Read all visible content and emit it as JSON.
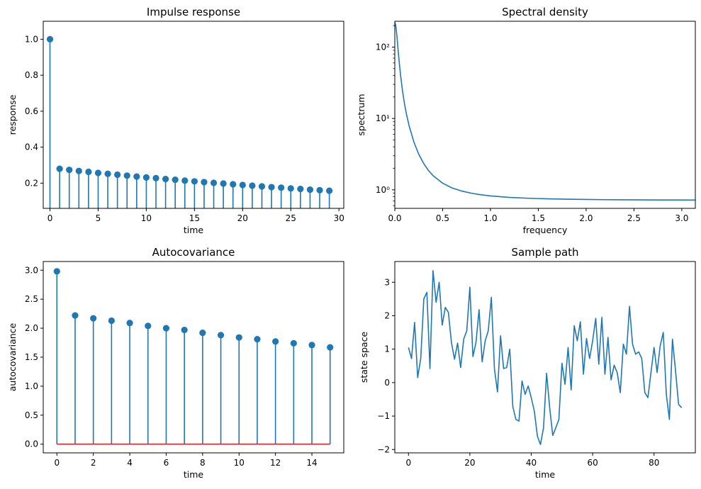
{
  "colors": {
    "line": "#1f77b4",
    "baseline": "#d62728",
    "axis": "#000000",
    "background": "#ffffff"
  },
  "chart_data": [
    {
      "id": "impulse",
      "type": "stem",
      "title": "Impulse response",
      "xlabel": "time",
      "ylabel": "response",
      "xlim": [
        -0.7,
        30.5
      ],
      "ylim": [
        0.06,
        1.1
      ],
      "xticks": [
        0,
        5,
        10,
        15,
        20,
        25,
        30
      ],
      "xtick_labels": [
        "0",
        "5",
        "10",
        "15",
        "20",
        "25",
        "30"
      ],
      "yticks": [
        0.2,
        0.4,
        0.6,
        0.8,
        1.0
      ],
      "ytick_labels": [
        "0.2",
        "0.4",
        "0.6",
        "0.8",
        "1.0"
      ],
      "x": [
        0,
        1,
        2,
        3,
        4,
        5,
        6,
        7,
        8,
        9,
        10,
        11,
        12,
        13,
        14,
        15,
        16,
        17,
        18,
        19,
        20,
        21,
        22,
        23,
        24,
        25,
        26,
        27,
        28,
        29
      ],
      "values": [
        1.0,
        0.28,
        0.274,
        0.268,
        0.263,
        0.257,
        0.252,
        0.247,
        0.242,
        0.237,
        0.232,
        0.228,
        0.223,
        0.219,
        0.214,
        0.21,
        0.206,
        0.202,
        0.198,
        0.194,
        0.19,
        0.186,
        0.182,
        0.178,
        0.175,
        0.171,
        0.168,
        0.164,
        0.161,
        0.158
      ]
    },
    {
      "id": "spectrum",
      "type": "line",
      "scale_y": "log",
      "title": "Spectral density",
      "xlabel": "frequency",
      "ylabel": "spectrum",
      "xlim": [
        0,
        3.1416
      ],
      "ylim": [
        0.55,
        230
      ],
      "xticks": [
        0,
        0.5,
        1.0,
        1.5,
        2.0,
        2.5,
        3.0
      ],
      "xtick_labels": [
        "0.0",
        "0.5",
        "1.0",
        "1.5",
        "2.0",
        "2.5",
        "3.0"
      ],
      "yticks": [
        1,
        10,
        100
      ],
      "ytick_labels": [
        "10⁰",
        "10¹",
        "10²"
      ],
      "x": [
        0,
        0.01,
        0.02,
        0.03,
        0.04,
        0.05,
        0.06,
        0.08,
        0.1,
        0.12,
        0.15,
        0.2,
        0.25,
        0.3,
        0.35,
        0.4,
        0.5,
        0.6,
        0.7,
        0.8,
        0.9,
        1.0,
        1.2,
        1.4,
        1.6,
        1.8,
        2.0,
        2.2,
        2.4,
        2.6,
        2.8,
        3.0,
        3.1416
      ],
      "values": [
        222.2,
        200.2,
        152.9,
        107.4,
        75.3,
        54.6,
        40.8,
        24.7,
        16.5,
        11.8,
        7.85,
        4.65,
        3.16,
        2.36,
        1.88,
        1.58,
        1.24,
        1.06,
        0.961,
        0.897,
        0.853,
        0.822,
        0.783,
        0.762,
        0.748,
        0.739,
        0.733,
        0.728,
        0.725,
        0.722,
        0.721,
        0.72,
        0.719
      ]
    },
    {
      "id": "autocov",
      "type": "stem",
      "title": "Autocovariance",
      "xlabel": "time",
      "ylabel": "autocovariance",
      "xlim": [
        -0.75,
        15.75
      ],
      "ylim": [
        -0.15,
        3.15
      ],
      "xticks": [
        0,
        2,
        4,
        6,
        8,
        10,
        12,
        14
      ],
      "xtick_labels": [
        "0",
        "2",
        "4",
        "6",
        "8",
        "10",
        "12",
        "14"
      ],
      "yticks": [
        0.0,
        0.5,
        1.0,
        1.5,
        2.0,
        2.5,
        3.0
      ],
      "ytick_labels": [
        "0.0",
        "0.5",
        "1.0",
        "1.5",
        "2.0",
        "2.5",
        "3.0"
      ],
      "x": [
        0,
        1,
        2,
        3,
        4,
        5,
        6,
        7,
        8,
        9,
        10,
        11,
        12,
        13,
        14,
        15
      ],
      "values": [
        2.98,
        2.22,
        2.17,
        2.13,
        2.09,
        2.04,
        2.0,
        1.97,
        1.92,
        1.88,
        1.84,
        1.81,
        1.77,
        1.74,
        1.71,
        1.67
      ]
    },
    {
      "id": "path",
      "type": "line",
      "title": "Sample path",
      "xlabel": "time",
      "ylabel": "state space",
      "xlim": [
        -4.45,
        93.45
      ],
      "ylim": [
        -2.1,
        3.62
      ],
      "xticks": [
        0,
        20,
        40,
        60,
        80
      ],
      "xtick_labels": [
        "0",
        "20",
        "40",
        "60",
        "80"
      ],
      "yticks": [
        -2,
        -1,
        0,
        1,
        2,
        3
      ],
      "ytick_labels": [
        "−2",
        "−1",
        "0",
        "1",
        "2",
        "3"
      ],
      "values": [
        1.05,
        0.72,
        1.8,
        0.15,
        0.72,
        2.5,
        2.7,
        0.42,
        3.35,
        2.4,
        3.0,
        1.72,
        2.25,
        2.1,
        1.2,
        0.7,
        1.18,
        0.45,
        1.3,
        1.55,
        2.85,
        0.78,
        1.2,
        2.18,
        0.62,
        1.25,
        1.55,
        2.55,
        0.42,
        -0.28,
        1.4,
        0.42,
        0.45,
        1.0,
        -0.72,
        -1.1,
        -1.15,
        0.05,
        -0.35,
        -0.1,
        -0.45,
        -0.85,
        -1.6,
        -1.85,
        -1.35,
        0.28,
        -0.75,
        -1.58,
        -1.35,
        -1.1,
        0.58,
        -0.05,
        1.05,
        -0.22,
        1.7,
        1.25,
        1.82,
        0.25,
        1.32,
        0.72,
        1.25,
        1.92,
        0.55,
        1.95,
        0.25,
        1.35,
        0.08,
        0.52,
        0.3,
        -0.3,
        1.15,
        0.85,
        2.28,
        1.15,
        0.85,
        0.92,
        0.72,
        -0.3,
        -0.45,
        0.3,
        1.05,
        0.3,
        1.1,
        1.5,
        -0.35,
        -1.1,
        1.3,
        0.35,
        -0.65,
        -0.75
      ]
    }
  ]
}
